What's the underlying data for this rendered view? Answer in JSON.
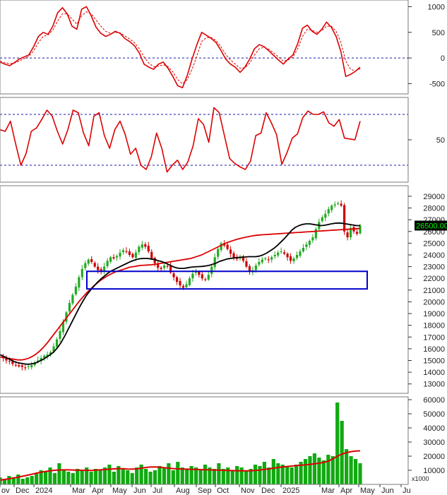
{
  "chart_data": [
    {
      "panel": "macd",
      "type": "line",
      "yticks": [
        1000,
        500,
        0,
        -500
      ],
      "ylim": [
        -700,
        1130
      ],
      "reference_lines": [
        0
      ],
      "colors": {
        "main": "#dd0000",
        "signal": "#dd0000",
        "reference": "#1a1aaa"
      },
      "series": [
        {
          "values": [
            -80,
            -120,
            -150,
            -90,
            -20,
            20,
            60,
            220,
            420,
            500,
            460,
            620,
            880,
            980,
            860,
            620,
            560,
            950,
            1000,
            820,
            600,
            480,
            420,
            460,
            520,
            480,
            380,
            320,
            240,
            100,
            -120,
            -180,
            -220,
            -120,
            -80,
            -200,
            -360,
            -540,
            -580,
            -340,
            -20,
            260,
            500,
            440,
            380,
            300,
            150,
            -20,
            -120,
            -180,
            -280,
            -180,
            -20,
            180,
            260,
            220,
            140,
            50,
            -40,
            -120,
            -20,
            60,
            280,
            580,
            640,
            520,
            460,
            560,
            700,
            600,
            420,
            120,
            -360,
            -320,
            -260,
            -180
          ]
        },
        {
          "values": [
            -60,
            -90,
            -110,
            -100,
            -60,
            -10,
            30,
            140,
            300,
            420,
            450,
            540,
            720,
            860,
            860,
            760,
            660,
            820,
            900,
            860,
            740,
            620,
            520,
            480,
            500,
            490,
            430,
            370,
            300,
            180,
            20,
            -100,
            -170,
            -160,
            -130,
            -170,
            -270,
            -420,
            -500,
            -420,
            -220,
            40,
            320,
            400,
            400,
            340,
            220,
            70,
            -40,
            -120,
            -200,
            -190,
            -100,
            60,
            180,
            210,
            170,
            100,
            20,
            -60,
            -40,
            20,
            180,
            420,
            560,
            540,
            500,
            530,
            620,
            620,
            520,
            300,
            -60,
            -220,
            -250,
            -210
          ]
        }
      ]
    },
    {
      "panel": "rsi",
      "type": "line",
      "yticks": [
        50
      ],
      "ylim": [
        0,
        100
      ],
      "reference_lines": [
        80,
        20
      ],
      "colors": {
        "main": "#dd0000",
        "reference": "#1a1aaa"
      },
      "series": [
        {
          "values": [
            62,
            60,
            72,
            45,
            20,
            34,
            60,
            64,
            74,
            85,
            78,
            60,
            45,
            62,
            85,
            82,
            58,
            43,
            78,
            82,
            55,
            40,
            62,
            72,
            56,
            33,
            40,
            20,
            15,
            30,
            58,
            40,
            12,
            20,
            26,
            15,
            24,
            43,
            75,
            68,
            47,
            88,
            82,
            55,
            28,
            22,
            18,
            15,
            25,
            55,
            58,
            82,
            70,
            56,
            21,
            35,
            52,
            57,
            76,
            84,
            80,
            80,
            83,
            70,
            66,
            74,
            52,
            51,
            50,
            72
          ]
        }
      ]
    },
    {
      "panel": "price",
      "type": "candlestick",
      "unit_label": "x1000",
      "yticks": [
        29000,
        28000,
        27000,
        26000,
        25000,
        24000,
        23000,
        22000,
        21000,
        20000,
        19000,
        18000,
        17000,
        16000,
        15000,
        14000,
        13000
      ],
      "ylim": [
        12200,
        29900
      ],
      "last_price_label": "26500.00",
      "x_labels": [
        "ov",
        "Dec",
        "2024",
        "Mar",
        "Apr",
        "May",
        "Jun",
        "Jul",
        "Aug",
        "Sep",
        "Oct",
        "Nov",
        "Dec",
        "2025",
        "Mar",
        "Apr",
        "May",
        "Jun",
        "Ju"
      ],
      "x_label_day": [
        0,
        20,
        48,
        100,
        128,
        157,
        187,
        214,
        247,
        278,
        305,
        339,
        368,
        398,
        453,
        480,
        508,
        538,
        568
      ],
      "colors": {
        "up": "#22aa22",
        "down": "#cc0000",
        "ma_short": "#000000",
        "ma_long": "#dd0000",
        "box": "#0000cc",
        "last_price_bg": "#000000",
        "last_price_text": "#00ff00"
      },
      "support_box": {
        "from_price": 22600,
        "to_price": 21100
      },
      "close": [
        15300,
        15200,
        15000,
        14900,
        14700,
        14600,
        14500,
        14450,
        14400,
        14500,
        14600,
        14800,
        15000,
        15200,
        15400,
        15500,
        15700,
        16200,
        16800,
        17500,
        18300,
        19100,
        19900,
        20600,
        21300,
        22100,
        22800,
        23300,
        23600,
        23400,
        23000,
        22700,
        22600,
        23000,
        23500,
        23800,
        23700,
        23900,
        24200,
        24400,
        24300,
        24000,
        23800,
        24200,
        24700,
        24900,
        24700,
        24300,
        23700,
        23300,
        22900,
        22800,
        23100,
        23000,
        22500,
        22100,
        21700,
        21400,
        21200,
        21500,
        22000,
        22400,
        22600,
        22300,
        22000,
        21900,
        22300,
        23000,
        23800,
        24500,
        25000,
        24800,
        24500,
        24100,
        23800,
        23700,
        23800,
        23500,
        23000,
        22600,
        22700,
        23100,
        23400,
        23600,
        23700,
        23600,
        23800,
        24000,
        24200,
        24300,
        24100,
        23800,
        23500,
        23700,
        24000,
        24300,
        24600,
        24900,
        25200,
        25500,
        26200,
        26800,
        27200,
        27500,
        27900,
        28200,
        28300,
        28400,
        28200,
        26000,
        25500,
        26300,
        26000,
        25800,
        26500
      ],
      "ma_short": [
        15500,
        15350,
        15200,
        15050,
        14900,
        14800,
        14750,
        14700,
        14680,
        14720,
        14800,
        14950,
        15100,
        15300,
        15500,
        15750,
        16100,
        16550,
        17100,
        17700,
        18300,
        18900,
        19500,
        20050,
        20550,
        20950,
        21300,
        21650,
        21950,
        22200,
        22450,
        22650,
        22800,
        22950,
        23100,
        23250,
        23400,
        23520,
        23620,
        23680,
        23700,
        23700,
        23650,
        23600,
        23500,
        23420,
        23300,
        23150,
        23000,
        22900,
        22850,
        22850,
        22900,
        22950,
        22980,
        23000,
        23020,
        23050,
        23100,
        23200,
        23300,
        23450,
        23550,
        23650,
        23700,
        23750,
        23780,
        23800,
        23820,
        23850,
        23850,
        23850,
        23900,
        24000,
        24150,
        24350,
        24550,
        24800,
        25100,
        25400,
        25750,
        26100,
        26350,
        26500,
        26600,
        26650,
        26650,
        26600,
        26550,
        26500,
        26520,
        26580,
        26650,
        26700,
        26720,
        26700,
        26650,
        26600,
        26550,
        26500,
        26500
      ],
      "ma_long": [
        15300,
        15250,
        15200,
        15150,
        15100,
        15050,
        15050,
        15100,
        15200,
        15350,
        15550,
        15800,
        16100,
        16450,
        16850,
        17250,
        17650,
        18050,
        18450,
        18850,
        19250,
        19650,
        20050,
        20400,
        20750,
        21050,
        21350,
        21600,
        21850,
        22050,
        22250,
        22400,
        22550,
        22650,
        22750,
        22850,
        22950,
        23000,
        23050,
        23100,
        23120,
        23140,
        23160,
        23200,
        23250,
        23300,
        23350,
        23400,
        23450,
        23500,
        23550,
        23600,
        23650,
        23700,
        23800,
        23900,
        24000,
        24150,
        24300,
        24450,
        24600,
        24750,
        24900,
        25050,
        25150,
        25250,
        25350,
        25420,
        25500,
        25560,
        25620,
        25670,
        25700,
        25720,
        25740,
        25760,
        25780,
        25800,
        25820,
        25840,
        25860,
        25880,
        25900,
        25920,
        25940,
        25960,
        25980,
        26000,
        26020,
        26040,
        26060,
        26080,
        26100,
        26120,
        26140,
        26160,
        26180,
        26200,
        26220,
        26240,
        26260
      ]
    },
    {
      "panel": "volume",
      "type": "bar",
      "unit_label": "x1000",
      "yticks": [
        60000,
        50000,
        40000,
        30000,
        20000,
        10000
      ],
      "ylim": [
        0,
        62000
      ],
      "colors": {
        "bars": "#11aa11",
        "ma": "#dd0000"
      },
      "volume": [
        5000,
        4000,
        6000,
        5000,
        7000,
        4000,
        5000,
        6000,
        8000,
        10000,
        9000,
        12000,
        8000,
        15000,
        10000,
        9000,
        8000,
        11000,
        10000,
        12000,
        9000,
        11000,
        10000,
        12000,
        14000,
        9000,
        13000,
        11000,
        10000,
        8000,
        12000,
        14000,
        11000,
        9000,
        10000,
        13000,
        12000,
        15000,
        10000,
        16000,
        12000,
        11000,
        13000,
        12000,
        10000,
        14000,
        12000,
        11000,
        15000,
        11000,
        12000,
        10000,
        13000,
        12000,
        10000,
        11000,
        14000,
        13000,
        16000,
        12000,
        18000,
        15000,
        14000,
        13000,
        12000,
        14000,
        16000,
        18000,
        20000,
        22000,
        19000,
        17000,
        21000,
        20000,
        58000,
        45000,
        25000,
        20000,
        18000,
        15000
      ],
      "ma": [
        3000,
        3500,
        4000,
        4600,
        5200,
        5800,
        6500,
        7200,
        8000,
        8600,
        9200,
        9600,
        10000,
        10200,
        10300,
        10300,
        10200,
        10100,
        10000,
        10000,
        9900,
        10100,
        10300,
        10500,
        10800,
        11000,
        11200,
        11100,
        10900,
        10800,
        11000,
        11500,
        12000,
        12300,
        12400,
        12200,
        11800,
        11500,
        11200,
        11000,
        10900,
        10800,
        10700,
        10600,
        10500,
        10400,
        10300,
        10200,
        10100,
        10000,
        9900,
        9800,
        9700,
        9650,
        9600,
        9700,
        9900,
        10200,
        10600,
        11000,
        11500,
        12000,
        12400,
        12700,
        13000,
        13300,
        13600,
        13900,
        14200,
        14600,
        15000,
        15600,
        16500,
        18000,
        20000,
        21500,
        22500,
        23200,
        23600,
        23800
      ]
    }
  ]
}
